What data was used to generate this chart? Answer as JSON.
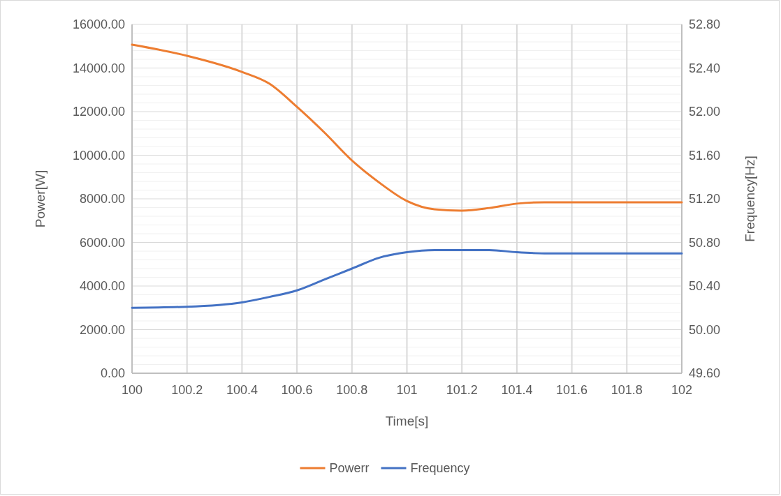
{
  "chart_data": {
    "type": "line",
    "xlabel": "Time[s]",
    "ylabel": "Power[W]",
    "y2label": "Frequency[Hz]",
    "x": [
      100,
      100.2,
      100.4,
      100.5,
      100.6,
      100.7,
      100.8,
      100.9,
      101,
      101.1,
      101.2,
      101.3,
      101.4,
      101.5,
      101.6,
      101.8,
      102
    ],
    "series": [
      {
        "name": "Powerr",
        "color": "#ed7d31",
        "values": [
          15070,
          14560,
          13820,
          13280,
          12220,
          11040,
          9760,
          8740,
          7900,
          7520,
          7460,
          7580,
          7780,
          7840,
          7840,
          7840,
          7840
        ]
      },
      {
        "name": "Frequency",
        "color": "#4472c4",
        "axis": "y2",
        "values": [
          50.2,
          50.21,
          50.25,
          50.3,
          50.36,
          50.46,
          50.56,
          50.66,
          50.71,
          50.73,
          50.73,
          50.73,
          50.71,
          50.7,
          50.7,
          50.7,
          50.7
        ]
      }
    ],
    "xlim": [
      100,
      102
    ],
    "xticks": [
      100,
      100.2,
      100.4,
      100.6,
      100.8,
      101,
      101.2,
      101.4,
      101.6,
      101.8,
      102
    ],
    "ylim": [
      0,
      16000
    ],
    "yticks": [
      {
        "value": 0,
        "label": "0.00"
      },
      {
        "value": 2000,
        "label": "2000.00"
      },
      {
        "value": 4000,
        "label": "4000.00"
      },
      {
        "value": 6000,
        "label": "6000.00"
      },
      {
        "value": 8000,
        "label": "8000.00"
      },
      {
        "value": 10000,
        "label": "10000.00"
      },
      {
        "value": 12000,
        "label": "12000.00"
      },
      {
        "value": 14000,
        "label": "14000.00"
      },
      {
        "value": 16000,
        "label": "16000.00"
      }
    ],
    "y2lim": [
      49.6,
      52.8
    ],
    "y2ticks": [
      {
        "value": 49.6,
        "label": "49.60"
      },
      {
        "value": 50,
        "label": "50.00"
      },
      {
        "value": 50.4,
        "label": "50.40"
      },
      {
        "value": 50.8,
        "label": "50.80"
      },
      {
        "value": 51.2,
        "label": "51.20"
      },
      {
        "value": 51.6,
        "label": "51.60"
      },
      {
        "value": 52,
        "label": "52.00"
      },
      {
        "value": 52.4,
        "label": "52.40"
      },
      {
        "value": 52.8,
        "label": "52.80"
      }
    ],
    "grid": true,
    "legend": "bottom",
    "line_style": "solid",
    "marker": "none"
  }
}
